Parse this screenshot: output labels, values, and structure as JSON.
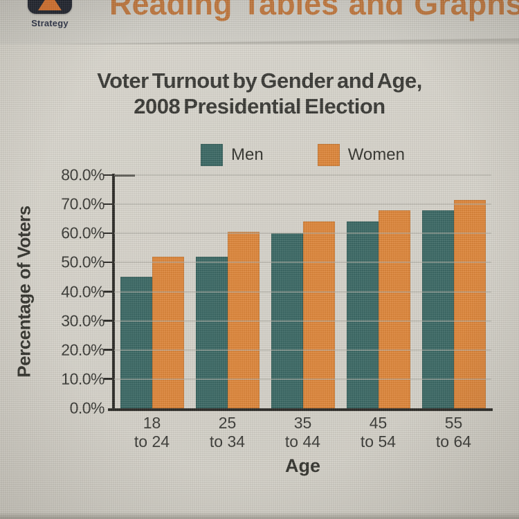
{
  "page": {
    "strategy_label": "Strategy",
    "header_title": "Reading Tables and Graphs"
  },
  "chart_data": {
    "type": "bar",
    "title_line1": "Voter Turnout by Gender and Age,",
    "title_line2": "2008 Presidential Election",
    "xlabel": "Age",
    "ylabel": "Percentage of Voters",
    "categories": [
      {
        "line1": "18",
        "line2": "to 24"
      },
      {
        "line1": "25",
        "line2": "to 34"
      },
      {
        "line1": "35",
        "line2": "to 44"
      },
      {
        "line1": "45",
        "line2": "to 54"
      },
      {
        "line1": "55",
        "line2": "to 64"
      }
    ],
    "series": [
      {
        "name": "Men",
        "color": "#3d6a66",
        "values": [
          45,
          52,
          60,
          64,
          68
        ]
      },
      {
        "name": "Women",
        "color": "#e0883c",
        "values": [
          52,
          60.5,
          64,
          68,
          71.5
        ]
      }
    ],
    "ylim": [
      0,
      80
    ],
    "ytick_step": 10,
    "ytick_labels": [
      "0.0%",
      "10.0%",
      "20.0%",
      "30.0%",
      "40.0%",
      "50.0%",
      "60.0%",
      "70.0%",
      "80.0%"
    ],
    "grid": true,
    "legend_position": "top-center"
  },
  "colors": {
    "men": "#3d6a66",
    "women": "#e0883c",
    "header_accent": "#c0783f",
    "axis": "#2e2d29",
    "text": "#3b3b37"
  }
}
